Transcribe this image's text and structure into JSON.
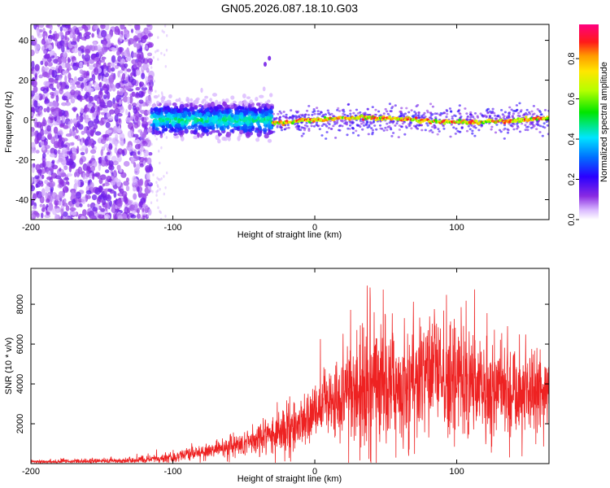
{
  "chart_data": [
    {
      "type": "heatmap",
      "title": "GN05.2026.087.18.10.G03",
      "xlabel": "Height of straight line (km)",
      "ylabel": "Frequency (Hz)",
      "xlim": [
        -200,
        165
      ],
      "ylim": [
        -50,
        48
      ],
      "xticks": [
        -200,
        -100,
        0,
        100
      ],
      "yticks": [
        -40,
        -20,
        0,
        20,
        40
      ],
      "colorbar": {
        "label": "Normalized spectral amplitude",
        "range": [
          0,
          0.97
        ],
        "ticks": [
          "0.0",
          "0.2",
          "0.4",
          "0.6",
          "0.8"
        ],
        "colormap": "rainbow (purple-blue-cyan-green-yellow-red-magenta)"
      },
      "features": {
        "noise_region_km": [
          -200,
          -115
        ],
        "turbulent_region_km": [
          -115,
          -30
        ],
        "stable_line_region_km": [
          -30,
          165
        ],
        "line_center_frequency_hz": 0,
        "outlier_points": [
          [
            -35,
            28
          ],
          [
            -32,
            31
          ]
        ]
      }
    },
    {
      "type": "line",
      "xlabel": "Height of straight line (km)",
      "ylabel": "SNR (10 * v/v)",
      "xlim": [
        -200,
        165
      ],
      "ylim": [
        0,
        9800
      ],
      "xticks": [
        -200,
        -100,
        0,
        100
      ],
      "yticks": [
        2000,
        4000,
        6000,
        8000
      ],
      "series": [
        {
          "name": "SNR",
          "color": "#ee2222",
          "envelope": {
            "x": [
              -200,
              -160,
              -130,
              -110,
              -90,
              -70,
              -50,
              -40,
              -30,
              -20,
              -10,
              0,
              10,
              20,
              30,
              40,
              60,
              80,
              100,
              120,
              140,
              160,
              165
            ],
            "mean": [
              100,
              120,
              150,
              250,
              450,
              700,
              1000,
              1200,
              1400,
              1700,
              2100,
              2600,
              3000,
              3300,
              3500,
              3800,
              4000,
              4300,
              4100,
              4000,
              3700,
              3600,
              3600
            ],
            "spread": [
              80,
              100,
              120,
              200,
              300,
              400,
              600,
              800,
              900,
              1000,
              1100,
              1200,
              1500,
              2000,
              2500,
              2700,
              2800,
              3000,
              2800,
              2600,
              2400,
              2100,
              2000
            ]
          }
        }
      ]
    }
  ]
}
